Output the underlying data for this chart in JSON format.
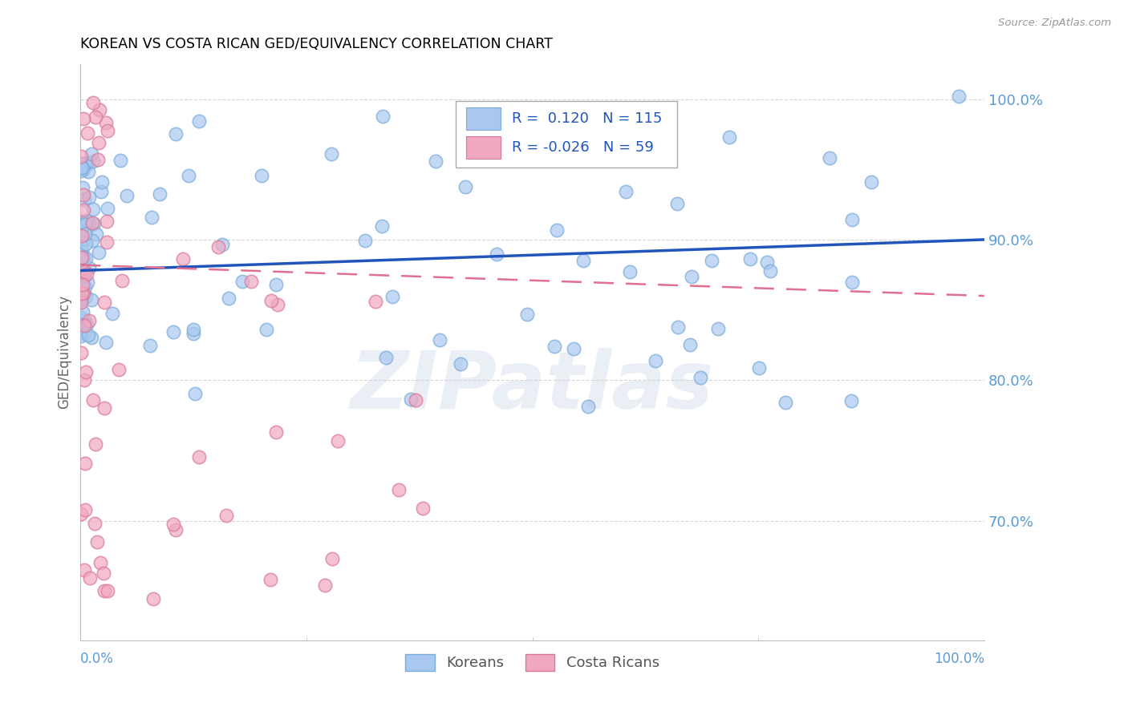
{
  "title": "KOREAN VS COSTA RICAN GED/EQUIVALENCY CORRELATION CHART",
  "source": "Source: ZipAtlas.com",
  "ylabel": "GED/Equivalency",
  "yticks": [
    0.7,
    0.8,
    0.9,
    1.0
  ],
  "ytick_labels": [
    "70.0%",
    "80.0%",
    "90.0%",
    "100.0%"
  ],
  "xlim": [
    0.0,
    1.0
  ],
  "ylim": [
    0.615,
    1.025
  ],
  "korean_color": "#a8c8f0",
  "korean_edge": "#7aaad8",
  "costa_rican_color": "#f0a8c0",
  "costa_rican_edge": "#d87898",
  "korean_line_color": "#2255bb",
  "costa_rican_line_color": "#e07090",
  "korean_R": 0.12,
  "korean_N": 115,
  "costa_rican_R": -0.026,
  "costa_rican_N": 59,
  "korean_line_start_y": 0.878,
  "korean_line_end_y": 0.9,
  "costa_rican_line_start_y": 0.882,
  "costa_rican_line_end_y": 0.86,
  "watermark_text": "ZIPatlas",
  "background_color": "#ffffff",
  "grid_color": "#cccccc",
  "tick_label_color": "#5b9bd5",
  "title_color": "#000000",
  "legend_R_color": "#2255bb",
  "legend_text_color": "#2255bb"
}
